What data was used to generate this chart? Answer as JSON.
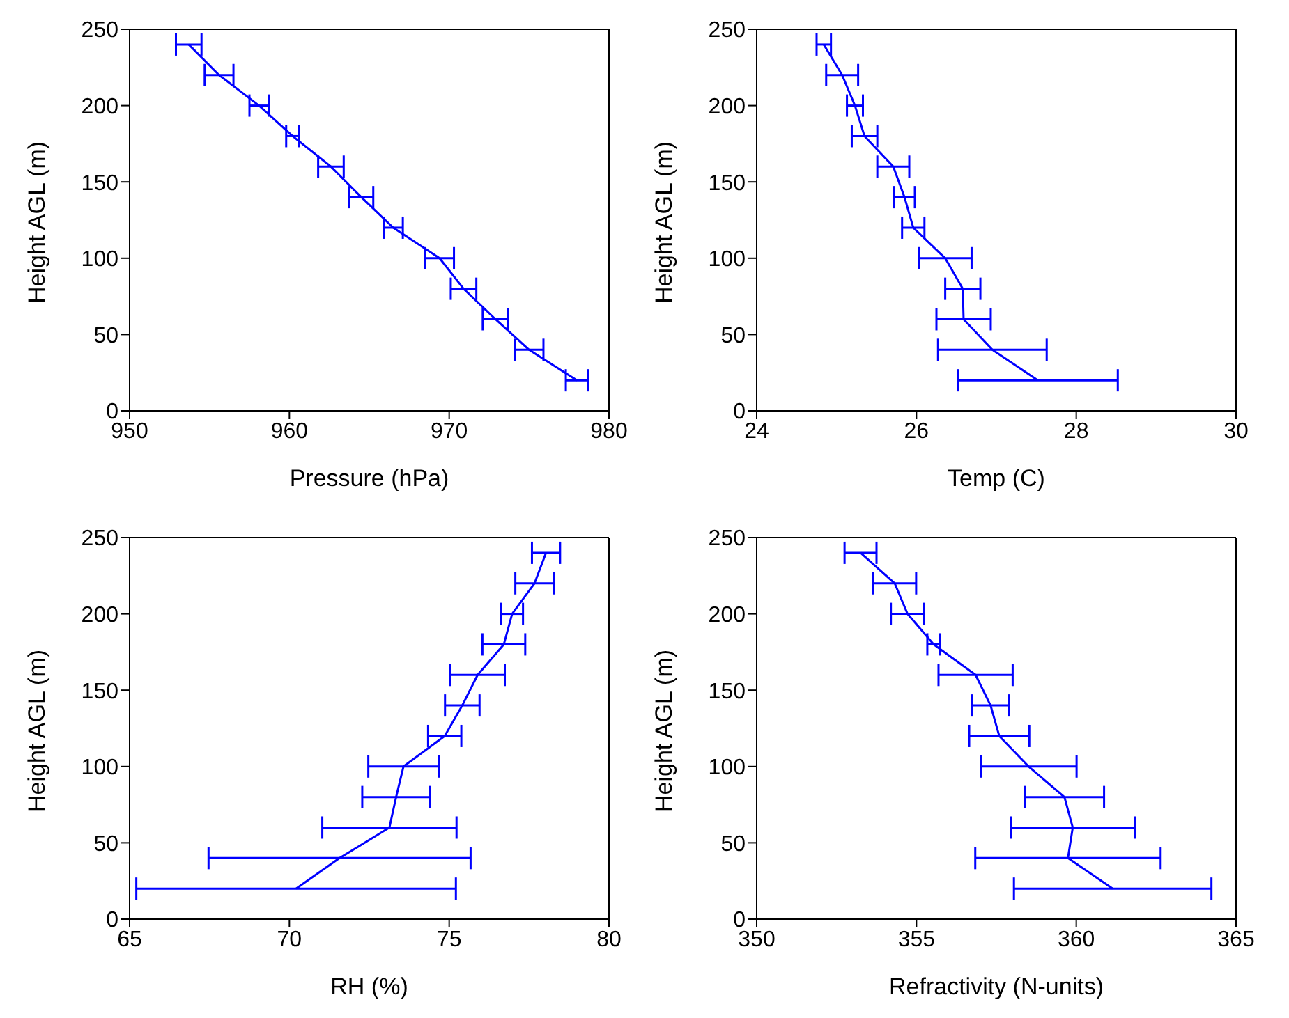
{
  "chart_data": [
    {
      "type": "line",
      "xlabel": "Pressure (hPa)",
      "ylabel": "Height AGL (m)",
      "xlim": [
        950,
        980
      ],
      "xticks": [
        950,
        960,
        970,
        980
      ],
      "ylim": [
        0,
        250
      ],
      "yticks": [
        0,
        50,
        100,
        150,
        200,
        250
      ],
      "marker": "none",
      "line_style": "solid",
      "series": [
        {
          "color": "#0000ff",
          "x": [
            978.0,
            975.0,
            972.9,
            970.9,
            969.4,
            966.5,
            964.5,
            962.6,
            960.2,
            958.1,
            955.6,
            953.7
          ],
          "values": [
            20,
            40,
            60,
            80,
            100,
            120,
            140,
            160,
            180,
            200,
            220,
            240
          ],
          "xerrors": [
            0.7,
            0.9,
            0.8,
            0.8,
            0.9,
            0.6,
            0.75,
            0.8,
            0.4,
            0.6,
            0.9,
            0.8
          ]
        }
      ]
    },
    {
      "type": "line",
      "xlabel": "Temp (C)",
      "ylabel": "Height AGL (m)",
      "xlim": [
        24,
        30
      ],
      "xticks": [
        24,
        26,
        28,
        30
      ],
      "ylim": [
        0,
        250
      ],
      "yticks": [
        0,
        50,
        100,
        150,
        200,
        250
      ],
      "marker": "none",
      "line_style": "solid",
      "series": [
        {
          "color": "#0000ff",
          "x": [
            27.52,
            26.95,
            26.59,
            26.58,
            26.36,
            25.96,
            25.85,
            25.71,
            25.35,
            25.23,
            25.07,
            24.84
          ],
          "values": [
            20,
            40,
            60,
            80,
            100,
            120,
            140,
            160,
            180,
            200,
            220,
            240
          ],
          "xerrors": [
            1.0,
            0.68,
            0.34,
            0.22,
            0.33,
            0.14,
            0.13,
            0.2,
            0.16,
            0.1,
            0.2,
            0.09
          ]
        }
      ]
    },
    {
      "type": "line",
      "xlabel": "RH (%)",
      "ylabel": "Height AGL (m)",
      "xlim": [
        65,
        80
      ],
      "xticks": [
        65,
        70,
        75,
        80
      ],
      "ylim": [
        0,
        250
      ],
      "yticks": [
        0,
        50,
        100,
        150,
        200,
        250
      ],
      "marker": "none",
      "line_style": "solid",
      "series": [
        {
          "color": "#0000ff",
          "x": [
            70.21,
            71.57,
            73.13,
            73.34,
            73.57,
            74.86,
            75.41,
            75.89,
            76.71,
            76.97,
            77.67,
            78.03
          ],
          "values": [
            20,
            40,
            60,
            80,
            100,
            120,
            140,
            160,
            180,
            200,
            220,
            240
          ],
          "xerrors": [
            5.0,
            4.1,
            2.1,
            1.06,
            1.1,
            0.52,
            0.54,
            0.85,
            0.67,
            0.34,
            0.6,
            0.44
          ]
        }
      ]
    },
    {
      "type": "line",
      "xlabel": "Refractivity (N-units)",
      "ylabel": "Height AGL (m)",
      "xlim": [
        350,
        365
      ],
      "xticks": [
        350,
        355,
        360,
        365
      ],
      "ylim": [
        0,
        250
      ],
      "yticks": [
        0,
        50,
        100,
        150,
        200,
        250
      ],
      "marker": "none",
      "line_style": "solid",
      "series": [
        {
          "color": "#0000ff",
          "x": [
            361.14,
            359.74,
            359.89,
            359.63,
            358.51,
            357.59,
            357.32,
            356.85,
            355.54,
            354.72,
            354.32,
            353.25
          ],
          "values": [
            20,
            40,
            60,
            80,
            100,
            120,
            140,
            160,
            180,
            200,
            220,
            240
          ],
          "xerrors": [
            3.09,
            2.9,
            1.94,
            1.24,
            1.5,
            0.94,
            0.58,
            1.16,
            0.2,
            0.52,
            0.67,
            0.5
          ]
        }
      ]
    }
  ]
}
